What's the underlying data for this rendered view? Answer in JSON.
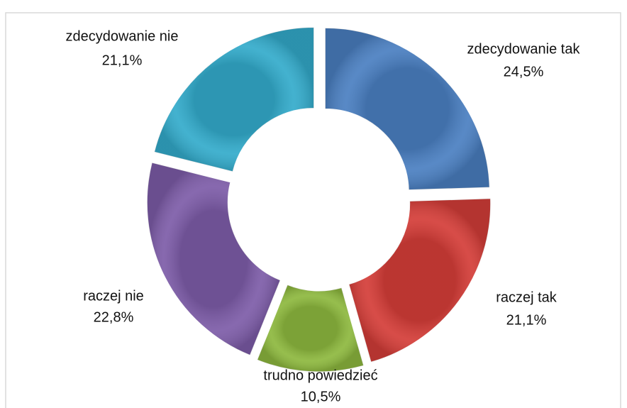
{
  "chart_data": {
    "type": "donut",
    "categories": [
      "zdecydowanie tak",
      "raczej tak",
      "trudno powiedzieć",
      "raczej nie",
      "zdecydowanie nie"
    ],
    "values": [
      24.5,
      21.1,
      10.5,
      22.8,
      21.1
    ],
    "value_labels": [
      "24,5%",
      "21,1%",
      "10,5%",
      "22,8%",
      "21,1%"
    ],
    "colors": [
      "#4a7fc1",
      "#d43d38",
      "#8db83e",
      "#7d5ca8",
      "#33abcb"
    ]
  }
}
